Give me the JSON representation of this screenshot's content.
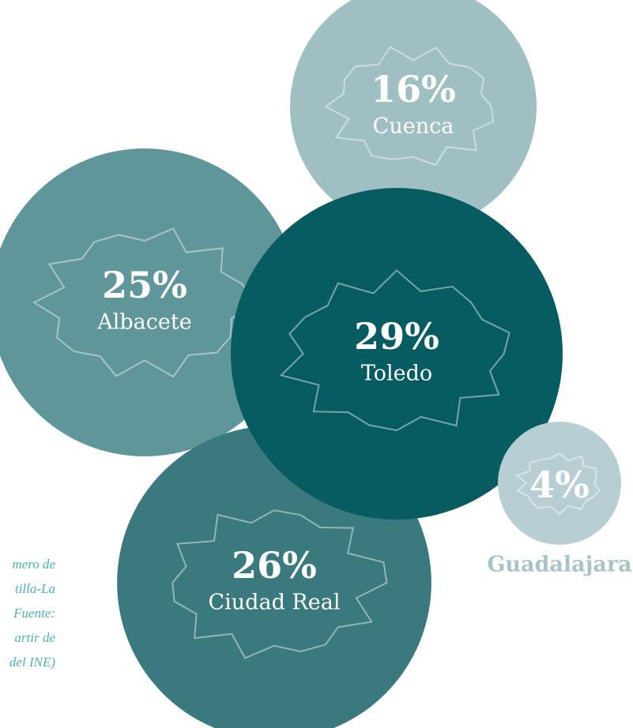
{
  "chart_data": {
    "type": "bubble",
    "categories": [
      "Cuenca",
      "Albacete",
      "Ciudad Real",
      "Toledo",
      "Guadalajara"
    ],
    "values": [
      16,
      25,
      26,
      29,
      4
    ],
    "value_labels": [
      "16%",
      "25%",
      "26%",
      "29%",
      "4%"
    ],
    "colors": [
      "#a0bfc2",
      "#5f9699",
      "#3a797e",
      "#075c62",
      "#b7cfd2"
    ],
    "annotation": [
      "mero de",
      "tilla-La",
      "Fuente:",
      "artir de",
      "del INE)"
    ]
  }
}
